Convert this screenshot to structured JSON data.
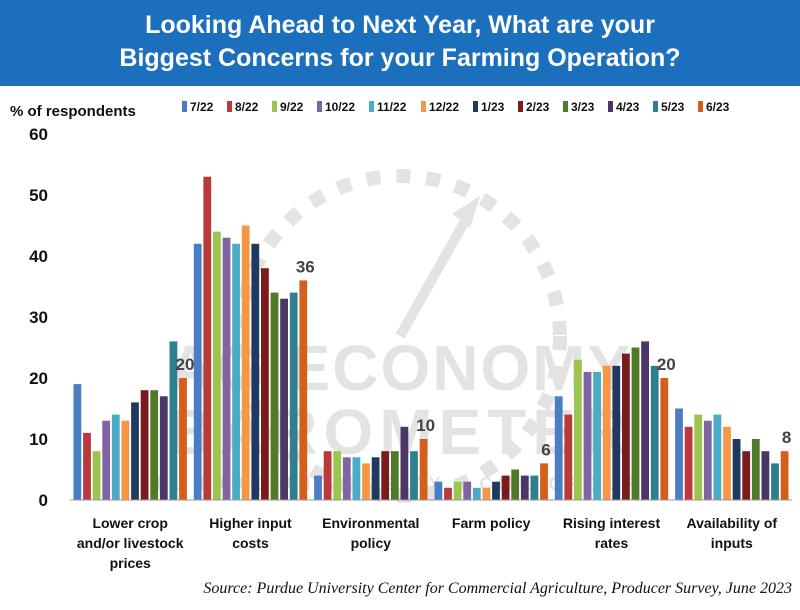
{
  "header": {
    "title_line1": "Looking Ahead to Next Year, What are your",
    "title_line2": "Biggest Concerns for  your Farming Operation?"
  },
  "watermark": {
    "line1": "AG ECONOMY",
    "line2": "BAROMETER",
    "line3": "PURDUE UNIVERSITY / CME GROUP"
  },
  "source": "Source: Purdue University Center for Commercial Agriculture, Producer Survey, June 2023",
  "chart_data": {
    "type": "bar",
    "title": "Looking Ahead to Next Year, What are your Biggest Concerns for  your Farming Operation?",
    "ylabel": "% of respondents",
    "xlabel": "",
    "ylim": [
      0,
      60
    ],
    "yticks": [
      0,
      10,
      20,
      30,
      40,
      50,
      60
    ],
    "grid": false,
    "legend_position": "top",
    "categories": [
      [
        "Lower crop",
        "and/or livestock",
        "prices"
      ],
      [
        "Higher input",
        "costs"
      ],
      [
        "Environmental",
        "policy"
      ],
      [
        "Farm policy"
      ],
      [
        "Rising interest",
        "rates"
      ],
      [
        "Availability of",
        "inputs"
      ]
    ],
    "series": [
      {
        "name": "7/22",
        "color": "#4a7ec2",
        "values": [
          19,
          42,
          4,
          3,
          17,
          15
        ]
      },
      {
        "name": "8/22",
        "color": "#b83a3a",
        "values": [
          11,
          53,
          8,
          2,
          14,
          12
        ]
      },
      {
        "name": "9/22",
        "color": "#9cc44e",
        "values": [
          8,
          44,
          8,
          3,
          23,
          14
        ]
      },
      {
        "name": "10/22",
        "color": "#8064a2",
        "values": [
          13,
          43,
          7,
          3,
          21,
          13
        ]
      },
      {
        "name": "11/22",
        "color": "#4bacc6",
        "values": [
          14,
          42,
          7,
          2,
          21,
          14
        ]
      },
      {
        "name": "12/22",
        "color": "#f79646",
        "values": [
          13,
          45,
          6,
          2,
          22,
          12
        ]
      },
      {
        "name": "1/23",
        "color": "#1f3a5f",
        "values": [
          16,
          42,
          7,
          3,
          22,
          10
        ]
      },
      {
        "name": "2/23",
        "color": "#7b1c1c",
        "values": [
          18,
          38,
          8,
          4,
          24,
          8
        ]
      },
      {
        "name": "3/23",
        "color": "#4f7a28",
        "values": [
          18,
          34,
          8,
          5,
          25,
          10
        ]
      },
      {
        "name": "4/23",
        "color": "#4b3667",
        "values": [
          17,
          33,
          12,
          4,
          26,
          8
        ]
      },
      {
        "name": "5/23",
        "color": "#2e7f90",
        "values": [
          26,
          34,
          8,
          4,
          22,
          6
        ]
      },
      {
        "name": "6/23",
        "color": "#d35f1a",
        "values": [
          20,
          36,
          10,
          6,
          20,
          8
        ]
      }
    ],
    "data_labels": [
      "20",
      "36",
      "10",
      "6",
      "20",
      "8"
    ]
  }
}
